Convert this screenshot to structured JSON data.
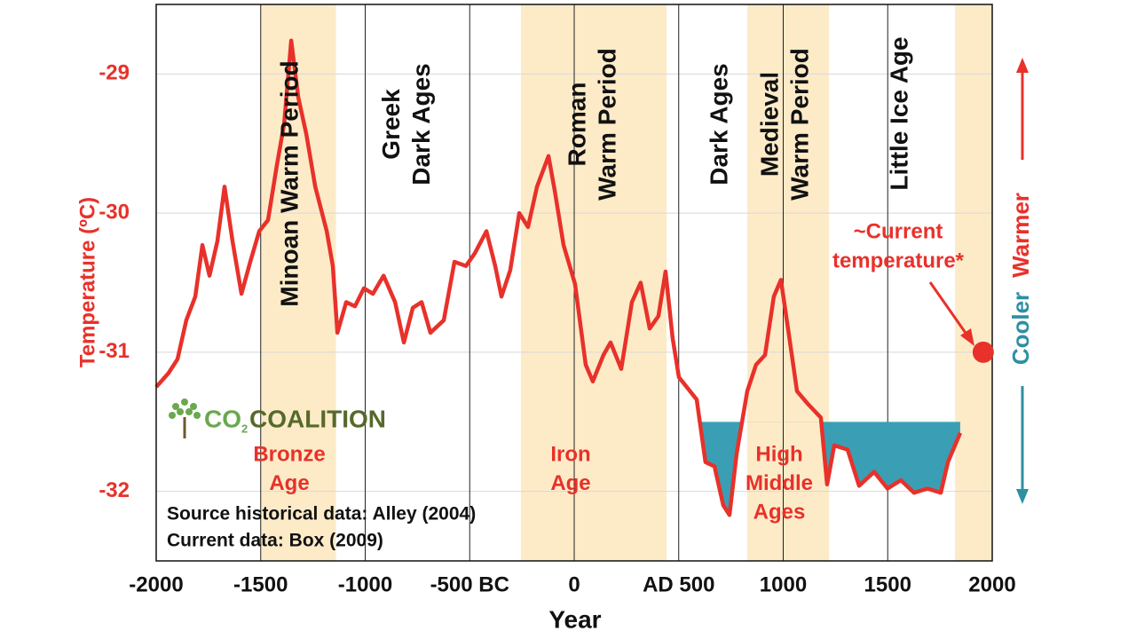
{
  "chart_data": {
    "type": "line",
    "x_label": "Year",
    "y_label": "Temperature  (ºC)",
    "xlim": [
      -2000,
      2000
    ],
    "xticks": [
      -2000,
      -1500,
      -1000,
      {
        "value": -500,
        "label": "-500 BC"
      },
      0,
      {
        "value": 500,
        "label": "AD 500"
      },
      1000,
      1500,
      2000
    ],
    "ylim": [
      -32.5,
      -28.5
    ],
    "yticks": [
      -32,
      -31,
      -30,
      -29
    ],
    "series": [
      {
        "name": "Temperature",
        "color": "#e8312a",
        "x": [
          -2000,
          -1941,
          -1898,
          -1856,
          -1813,
          -1779,
          -1745,
          -1707,
          -1673,
          -1635,
          -1592,
          -1550,
          -1507,
          -1465,
          -1422,
          -1388,
          -1354,
          -1320,
          -1282,
          -1239,
          -1184,
          -1155,
          -1133,
          -1091,
          -1049,
          -1006,
          -963,
          -912,
          -857,
          -815,
          -772,
          -730,
          -688,
          -624,
          -573,
          -518,
          -476,
          -420,
          -378,
          -348,
          -306,
          -263,
          -221,
          -178,
          -123,
          -93,
          -51,
          4,
          55,
          89,
          140,
          174,
          225,
          276,
          318,
          361,
          403,
          437,
          471,
          501,
          586,
          628,
          671,
          713,
          743,
          777,
          828,
          870,
          913,
          955,
          989,
          1023,
          1066,
          1117,
          1180,
          1210,
          1244,
          1308,
          1363,
          1435,
          1499,
          1563,
          1626,
          1690,
          1754,
          1788,
          1847
        ],
        "values": [
          -31.25,
          -31.15,
          -31.05,
          -30.77,
          -30.6,
          -30.23,
          -30.45,
          -30.2,
          -29.81,
          -30.2,
          -30.58,
          -30.35,
          -30.13,
          -30.05,
          -29.65,
          -29.36,
          -28.76,
          -29.17,
          -29.43,
          -29.81,
          -30.13,
          -30.38,
          -30.86,
          -30.64,
          -30.67,
          -30.54,
          -30.58,
          -30.45,
          -30.64,
          -30.93,
          -30.68,
          -30.64,
          -30.86,
          -30.77,
          -30.35,
          -30.38,
          -30.29,
          -30.13,
          -30.38,
          -30.6,
          -30.41,
          -30.0,
          -30.1,
          -29.81,
          -29.59,
          -29.84,
          -30.23,
          -30.51,
          -31.09,
          -31.21,
          -31.02,
          -30.93,
          -31.12,
          -30.64,
          -30.5,
          -30.83,
          -30.74,
          -30.42,
          -30.9,
          -31.18,
          -31.34,
          -31.79,
          -31.82,
          -32.1,
          -32.17,
          -31.73,
          -31.28,
          -31.09,
          -31.02,
          -30.6,
          -30.48,
          -30.83,
          -31.28,
          -31.37,
          -31.47,
          -31.95,
          -31.67,
          -31.7,
          -31.96,
          -31.86,
          -31.98,
          -31.92,
          -32.01,
          -31.98,
          -32.01,
          -31.79,
          -31.58
        ]
      }
    ],
    "fill_below": -31.5,
    "fill_color": "#3a9fb4",
    "band_color": "#fdebc8",
    "bands": [
      [
        -1500,
        -1140
      ],
      [
        -255,
        442
      ],
      [
        828,
        1219
      ],
      [
        1822,
        2000
      ]
    ],
    "period_labels": [
      {
        "x": -1354,
        "lines": [
          "Minoan  Warm Period"
        ]
      },
      {
        "x": -795,
        "lines": [
          "Greek",
          "Dark Ages"
        ]
      },
      {
        "x": 93,
        "lines": [
          "Roman",
          "Warm Period"
        ]
      },
      {
        "x": 701,
        "lines": [
          "Dark Ages"
        ]
      },
      {
        "x": 1015,
        "lines": [
          "Medieval",
          "Warm Period"
        ]
      },
      {
        "x": 1563,
        "lines": [
          "Little Ice Age"
        ]
      }
    ],
    "era_labels": [
      {
        "x": -1363,
        "lines": [
          "Bronze",
          "Age"
        ]
      },
      {
        "x": -17,
        "lines": [
          "Iron",
          "Age"
        ]
      },
      {
        "x": 981,
        "lines": [
          "High",
          "Middle",
          "Ages"
        ]
      }
    ],
    "current": {
      "label": [
        "~Current",
        "temperature*"
      ],
      "x": 1957,
      "value": -31.0
    },
    "warmer": "Warmer",
    "cooler": "Cooler",
    "source": [
      "Source historical data: Alley (2004)",
      "Current data: Box (2009)"
    ],
    "logo": [
      "CO",
      "2",
      "COALITION"
    ]
  }
}
